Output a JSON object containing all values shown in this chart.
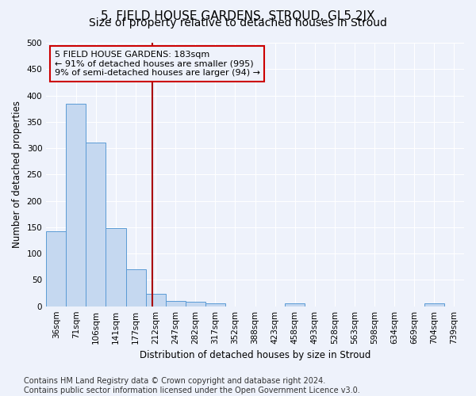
{
  "title": "5, FIELD HOUSE GARDENS, STROUD, GL5 2JX",
  "subtitle": "Size of property relative to detached houses in Stroud",
  "xlabel": "Distribution of detached houses by size in Stroud",
  "ylabel": "Number of detached properties",
  "bar_color": "#c5d8f0",
  "bar_edge_color": "#5b9bd5",
  "categories": [
    "36sqm",
    "71sqm",
    "106sqm",
    "141sqm",
    "177sqm",
    "212sqm",
    "247sqm",
    "282sqm",
    "317sqm",
    "352sqm",
    "388sqm",
    "423sqm",
    "458sqm",
    "493sqm",
    "528sqm",
    "563sqm",
    "598sqm",
    "634sqm",
    "669sqm",
    "704sqm",
    "739sqm"
  ],
  "values": [
    142,
    385,
    310,
    148,
    70,
    23,
    10,
    9,
    5,
    0,
    0,
    0,
    5,
    0,
    0,
    0,
    0,
    0,
    0,
    5,
    0
  ],
  "ylim": [
    0,
    500
  ],
  "yticks": [
    0,
    50,
    100,
    150,
    200,
    250,
    300,
    350,
    400,
    450,
    500
  ],
  "vline_x": 4.82,
  "vline_color": "#aa0000",
  "annotation_line1": "5 FIELD HOUSE GARDENS: 183sqm",
  "annotation_line2": "← 91% of detached houses are smaller (995)",
  "annotation_line3": "9% of semi-detached houses are larger (94) →",
  "annotation_box_color": "#cc0000",
  "footer_text": "Contains HM Land Registry data © Crown copyright and database right 2024.\nContains public sector information licensed under the Open Government Licence v3.0.",
  "background_color": "#eef2fb",
  "grid_color": "#ffffff",
  "title_fontsize": 11,
  "subtitle_fontsize": 10,
  "label_fontsize": 8.5,
  "tick_fontsize": 7.5,
  "footer_fontsize": 7
}
